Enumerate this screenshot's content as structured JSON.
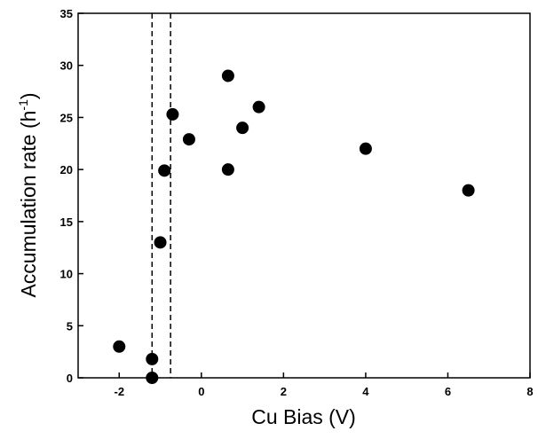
{
  "chart_data": {
    "type": "scatter",
    "x": [
      -2,
      -1.2,
      -1.2,
      -1,
      -0.9,
      -0.7,
      -0.3,
      0.65,
      0.65,
      1,
      1.4,
      4,
      6.5
    ],
    "values": [
      3,
      1.8,
      0,
      13,
      19.9,
      25.3,
      22.9,
      29,
      20,
      24,
      26,
      22,
      18
    ],
    "color": "#000000",
    "xlim": [
      -3,
      8
    ],
    "xticks": [
      -2,
      0,
      2,
      4,
      6,
      8
    ],
    "ylim": [
      0,
      35
    ],
    "yticks": [
      0,
      5,
      10,
      15,
      20,
      25,
      30,
      35
    ],
    "vlines": [
      -1.2,
      -0.75
    ],
    "xlabel": "Cu Bias (V)",
    "ylabel": [
      "Accumulation rate (h",
      "-1",
      ")"
    ]
  }
}
